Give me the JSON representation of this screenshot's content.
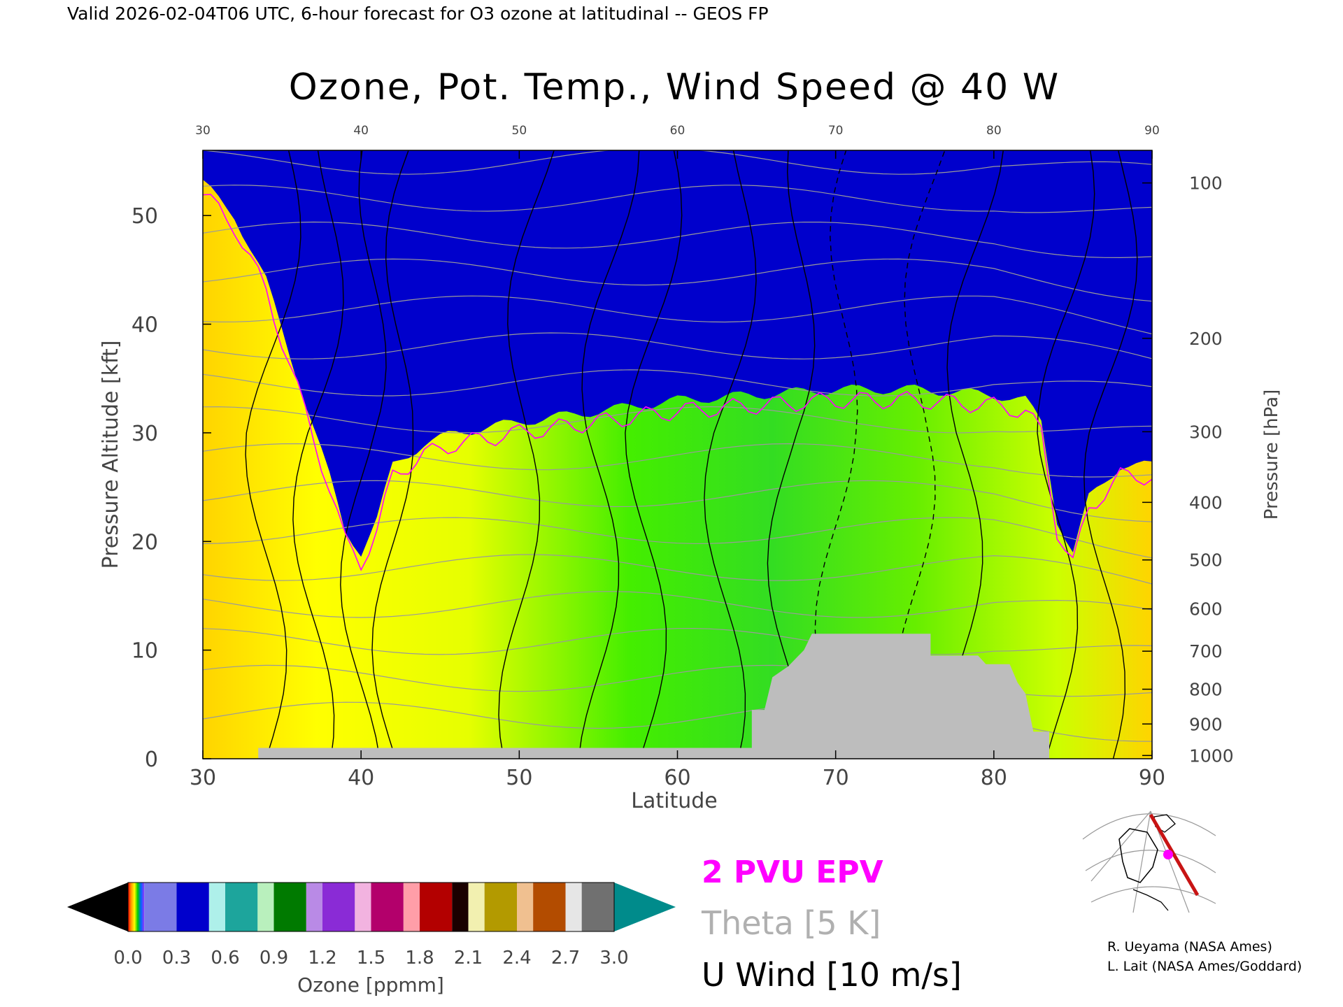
{
  "header": {
    "valid_line": "Valid 2026-02-04T06 UTC, 6-hour forecast for O3 ozone at latitudinal -- GEOS FP"
  },
  "chart_data": {
    "type": "heatmap",
    "title": "Ozone, Pot. Temp., Wind Speed @ 40 W",
    "xlabel": "Latitude",
    "ylabel": "Pressure Altitude [kft]",
    "y2label": "Pressure [hPa]",
    "xlim": [
      30,
      90
    ],
    "ylim": [
      0,
      56
    ],
    "x_ticks": [
      "30",
      "40",
      "50",
      "60",
      "70",
      "80",
      "90"
    ],
    "y_ticks": [
      "0",
      "10",
      "20",
      "30",
      "40",
      "50"
    ],
    "pressure_ticks": [
      {
        "label": "100",
        "kft": 53.0
      },
      {
        "label": "200",
        "kft": 38.7
      },
      {
        "label": "300",
        "kft": 30.1
      },
      {
        "label": "400",
        "kft": 23.6
      },
      {
        "label": "500",
        "kft": 18.3
      },
      {
        "label": "600",
        "kft": 13.8
      },
      {
        "label": "700",
        "kft": 9.9
      },
      {
        "label": "800",
        "kft": 6.4
      },
      {
        "label": "900",
        "kft": 3.2
      },
      {
        "label": "1000",
        "kft": 0.3
      }
    ],
    "ozone_boundary_kft": [
      [
        30,
        53
      ],
      [
        32,
        50
      ],
      [
        34,
        44
      ],
      [
        36,
        35
      ],
      [
        38,
        26
      ],
      [
        39,
        21
      ],
      [
        40,
        19
      ],
      [
        41,
        22
      ],
      [
        42,
        27
      ],
      [
        44,
        29
      ],
      [
        46,
        30
      ],
      [
        50,
        31
      ],
      [
        55,
        32
      ],
      [
        60,
        33
      ],
      [
        65,
        33.5
      ],
      [
        70,
        34
      ],
      [
        75,
        34
      ],
      [
        80,
        33.5
      ],
      [
        82,
        33
      ],
      [
        83,
        31
      ],
      [
        84,
        22
      ],
      [
        85,
        19
      ],
      [
        86,
        24
      ],
      [
        88,
        27
      ],
      [
        90,
        27
      ]
    ],
    "stratosphere_bands_kft": [
      {
        "offset": 0,
        "color": "#0000cc"
      },
      {
        "offset": 1.5,
        "color": "#7b7be6"
      },
      {
        "offset": 3,
        "color": "#c7c7f2"
      },
      {
        "offset": 4.5,
        "color": "#aef0ea"
      },
      {
        "offset": 6,
        "color": "#1da59c"
      },
      {
        "offset": 7.5,
        "color": "#b9f0bd"
      },
      {
        "offset": 9,
        "color": "#007a00"
      },
      {
        "offset": 10.5,
        "color": "#b98ae6"
      },
      {
        "offset": 12,
        "color": "#8a2bd6"
      },
      {
        "offset": 13.5,
        "color": "#f2b3e0"
      },
      {
        "offset": 15,
        "color": "#b3006b"
      },
      {
        "offset": 16.5,
        "color": "#ff9ea8"
      },
      {
        "offset": 18,
        "color": "#b30000"
      },
      {
        "offset": 19.5,
        "color": "#e6e07a"
      },
      {
        "offset": 21,
        "color": "#b39a00"
      },
      {
        "offset": 22.5,
        "color": "#e6a060"
      },
      {
        "offset": 24,
        "color": "#b34c00"
      },
      {
        "offset": 25.5,
        "color": "#d9d9d9"
      },
      {
        "offset": 27,
        "color": "#008b8b"
      }
    ],
    "terrain_kft": [
      [
        30,
        0
      ],
      [
        33.5,
        0
      ],
      [
        33.5,
        1
      ],
      [
        64.7,
        1
      ],
      [
        64.7,
        4.5
      ],
      [
        65.5,
        4.5
      ],
      [
        66,
        7.5
      ],
      [
        67,
        8.5
      ],
      [
        68,
        10
      ],
      [
        68.5,
        11.5
      ],
      [
        76,
        11.5
      ],
      [
        76,
        9.5
      ],
      [
        79,
        9.5
      ],
      [
        79.5,
        8.7
      ],
      [
        81,
        8.7
      ],
      [
        81.5,
        7
      ],
      [
        82,
        6
      ],
      [
        82.5,
        2.5
      ],
      [
        83.5,
        2.5
      ],
      [
        83.5,
        0
      ],
      [
        90,
        0
      ]
    ],
    "series": [
      {
        "name": "2 PVU EPV",
        "color": "#ff00ff"
      },
      {
        "name": "Theta [5 K]",
        "color": "#b0b0b0"
      },
      {
        "name": "U Wind [10 m/s]",
        "color": "#000000"
      }
    ],
    "colorbar": {
      "label": "Ozone [ppmm]",
      "ticks": [
        "0.0",
        "0.3",
        "0.6",
        "0.9",
        "1.2",
        "1.5",
        "1.8",
        "2.1",
        "2.4",
        "2.7",
        "3.0"
      ],
      "min_color": "#000000",
      "max_color": "#008b8b",
      "segments": [
        {
          "from": 0.0,
          "to": 0.1,
          "color": "spectrum"
        },
        {
          "from": 0.1,
          "to": 0.3,
          "color": "#7b7be6"
        },
        {
          "from": 0.3,
          "to": 0.5,
          "color": "#0000cc"
        },
        {
          "from": 0.5,
          "to": 0.6,
          "color": "#aef0ea"
        },
        {
          "from": 0.6,
          "to": 0.8,
          "color": "#1da59c"
        },
        {
          "from": 0.8,
          "to": 0.9,
          "color": "#b9f0bd"
        },
        {
          "from": 0.9,
          "to": 1.1,
          "color": "#007a00"
        },
        {
          "from": 1.1,
          "to": 1.2,
          "color": "#b98ae6"
        },
        {
          "from": 1.2,
          "to": 1.4,
          "color": "#8a2bd6"
        },
        {
          "from": 1.4,
          "to": 1.5,
          "color": "#f2b3e0"
        },
        {
          "from": 1.5,
          "to": 1.7,
          "color": "#b3006b"
        },
        {
          "from": 1.7,
          "to": 1.8,
          "color": "#ff9ea8"
        },
        {
          "from": 1.8,
          "to": 2.0,
          "color": "#b30000"
        },
        {
          "from": 2.0,
          "to": 2.1,
          "color": "#1a0000"
        },
        {
          "from": 2.1,
          "to": 2.2,
          "color": "#f2f0b0"
        },
        {
          "from": 2.2,
          "to": 2.4,
          "color": "#b39a00"
        },
        {
          "from": 2.4,
          "to": 2.5,
          "color": "#f0c090"
        },
        {
          "from": 2.5,
          "to": 2.7,
          "color": "#b34c00"
        },
        {
          "from": 2.7,
          "to": 2.8,
          "color": "#e6e6e6"
        },
        {
          "from": 2.8,
          "to": 3.0,
          "color": "#707070"
        }
      ]
    }
  },
  "credits": {
    "line1": "R. Ueyama (NASA Ames)",
    "line2": "L. Lait (NASA Ames/Goddard)"
  }
}
